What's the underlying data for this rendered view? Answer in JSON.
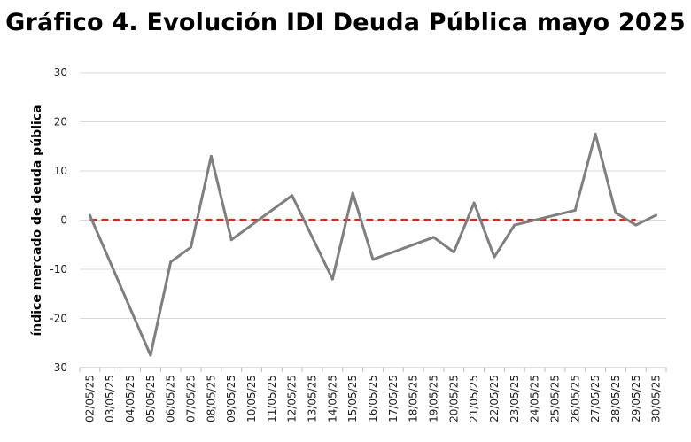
{
  "chart_data": {
    "type": "line",
    "title": "Gráfico 4. Evolución IDI Deuda Pública mayo 2025",
    "xlabel": "",
    "ylabel": "índice mercado de deuda pública",
    "ylim": [
      -30,
      30
    ],
    "yticks": [
      -30,
      -20,
      -10,
      0,
      10,
      20,
      30
    ],
    "grid": true,
    "legend": "none",
    "categories": [
      "02/05/25",
      "03/05/25",
      "04/05/25",
      "05/05/25",
      "06/05/25",
      "07/05/25",
      "08/05/25",
      "09/05/25",
      "10/05/25",
      "11/05/25",
      "12/05/25",
      "13/05/25",
      "14/05/25",
      "15/05/25",
      "16/05/25",
      "17/05/25",
      "18/05/25",
      "19/05/25",
      "20/05/25",
      "21/05/25",
      "22/05/25",
      "23/05/25",
      "24/05/25",
      "25/05/25",
      "26/05/25",
      "27/05/25",
      "28/05/25",
      "29/05/25",
      "30/05/25"
    ],
    "points": [
      {
        "x": "02/05/25",
        "y": 1.0
      },
      {
        "x": "05/05/25",
        "y": -27.5
      },
      {
        "x": "06/05/25",
        "y": -8.5
      },
      {
        "x": "07/05/25",
        "y": -5.5
      },
      {
        "x": "08/05/25",
        "y": 13.0
      },
      {
        "x": "09/05/25",
        "y": -4.0
      },
      {
        "x": "12/05/25",
        "y": 5.0
      },
      {
        "x": "14/05/25",
        "y": -12.0
      },
      {
        "x": "15/05/25",
        "y": 5.5
      },
      {
        "x": "16/05/25",
        "y": -8.0
      },
      {
        "x": "19/05/25",
        "y": -3.5
      },
      {
        "x": "20/05/25",
        "y": -6.5
      },
      {
        "x": "21/05/25",
        "y": 3.5
      },
      {
        "x": "22/05/25",
        "y": -7.5
      },
      {
        "x": "23/05/25",
        "y": -1.0
      },
      {
        "x": "26/05/25",
        "y": 2.0
      },
      {
        "x": "27/05/25",
        "y": 17.5
      },
      {
        "x": "28/05/25",
        "y": 1.5
      },
      {
        "x": "29/05/25",
        "y": -1.0
      },
      {
        "x": "30/05/25",
        "y": 1.0
      }
    ],
    "reference_line": {
      "y": 0,
      "color": "#e8211b",
      "style": "dashed"
    },
    "colors": {
      "line": "#7f7f7f",
      "grid": "#d9d9d9",
      "axis": "#bfbfbf"
    }
  }
}
